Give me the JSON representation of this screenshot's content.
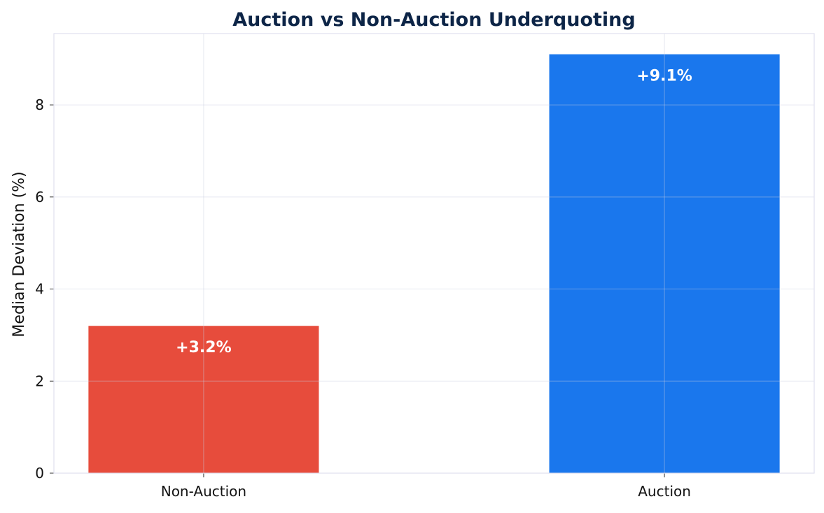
{
  "chart_data": {
    "type": "bar",
    "title": "Auction vs Non-Auction Underquoting",
    "xlabel": "",
    "ylabel": "Median Deviation (%)",
    "categories": [
      "Non-Auction",
      "Auction"
    ],
    "values": [
      3.2,
      9.1
    ],
    "data_labels": [
      "+3.2%",
      "+9.1%"
    ],
    "colors": [
      "#e74c3c",
      "#1a77ed"
    ],
    "ylim": [
      0,
      9.55
    ],
    "yticks": [
      0,
      2,
      4,
      6,
      8
    ],
    "ytick_labels": [
      "0",
      "2",
      "4",
      "6",
      "8"
    ],
    "grid": true,
    "title_color": "#0d2547"
  }
}
